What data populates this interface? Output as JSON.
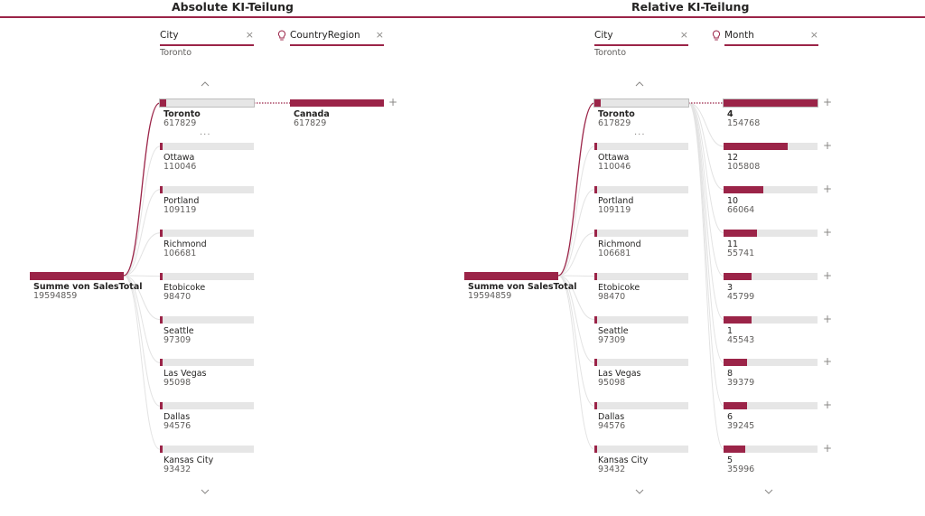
{
  "left": {
    "title": "Absolute KI-Teilung",
    "pill1": {
      "label": "City",
      "sub": "Toronto",
      "close": "×"
    },
    "pill2": {
      "label": "CountryRegion",
      "close": "×"
    },
    "root": {
      "label": "Summe von SalesTotal",
      "value": "19594859"
    },
    "cities": [
      {
        "label": "Toronto",
        "value": "617829"
      },
      {
        "label": "Ottawa",
        "value": "110046"
      },
      {
        "label": "Portland",
        "value": "109119"
      },
      {
        "label": "Richmond",
        "value": "106681"
      },
      {
        "label": "Etobicoke",
        "value": "98470"
      },
      {
        "label": "Seattle",
        "value": "97309"
      },
      {
        "label": "Las Vegas",
        "value": "95098"
      },
      {
        "label": "Dallas",
        "value": "94576"
      },
      {
        "label": "Kansas City",
        "value": "93432"
      }
    ],
    "more": "...",
    "country": {
      "label": "Canada",
      "value": "617829"
    },
    "plus": "+"
  },
  "right": {
    "title": "Relative KI-Teilung",
    "pill1": {
      "label": "City",
      "sub": "Toronto",
      "close": "×"
    },
    "pill2": {
      "label": "Month",
      "close": "×"
    },
    "root": {
      "label": "Summe von SalesTotal",
      "value": "19594859"
    },
    "cities": [
      {
        "label": "Toronto",
        "value": "617829"
      },
      {
        "label": "Ottawa",
        "value": "110046"
      },
      {
        "label": "Portland",
        "value": "109119"
      },
      {
        "label": "Richmond",
        "value": "106681"
      },
      {
        "label": "Etobicoke",
        "value": "98470"
      },
      {
        "label": "Seattle",
        "value": "97309"
      },
      {
        "label": "Las Vegas",
        "value": "95098"
      },
      {
        "label": "Dallas",
        "value": "94576"
      },
      {
        "label": "Kansas City",
        "value": "93432"
      }
    ],
    "more": "...",
    "months": [
      {
        "label": "4",
        "value": "154768"
      },
      {
        "label": "12",
        "value": "105808"
      },
      {
        "label": "10",
        "value": "66064"
      },
      {
        "label": "11",
        "value": "55741"
      },
      {
        "label": "3",
        "value": "45799"
      },
      {
        "label": "1",
        "value": "45543"
      },
      {
        "label": "8",
        "value": "39379"
      },
      {
        "label": "6",
        "value": "39245"
      },
      {
        "label": "5",
        "value": "35996"
      }
    ],
    "plus": "+"
  },
  "colors": {
    "accent": "#9b2448",
    "track": "#e6e6e6"
  }
}
